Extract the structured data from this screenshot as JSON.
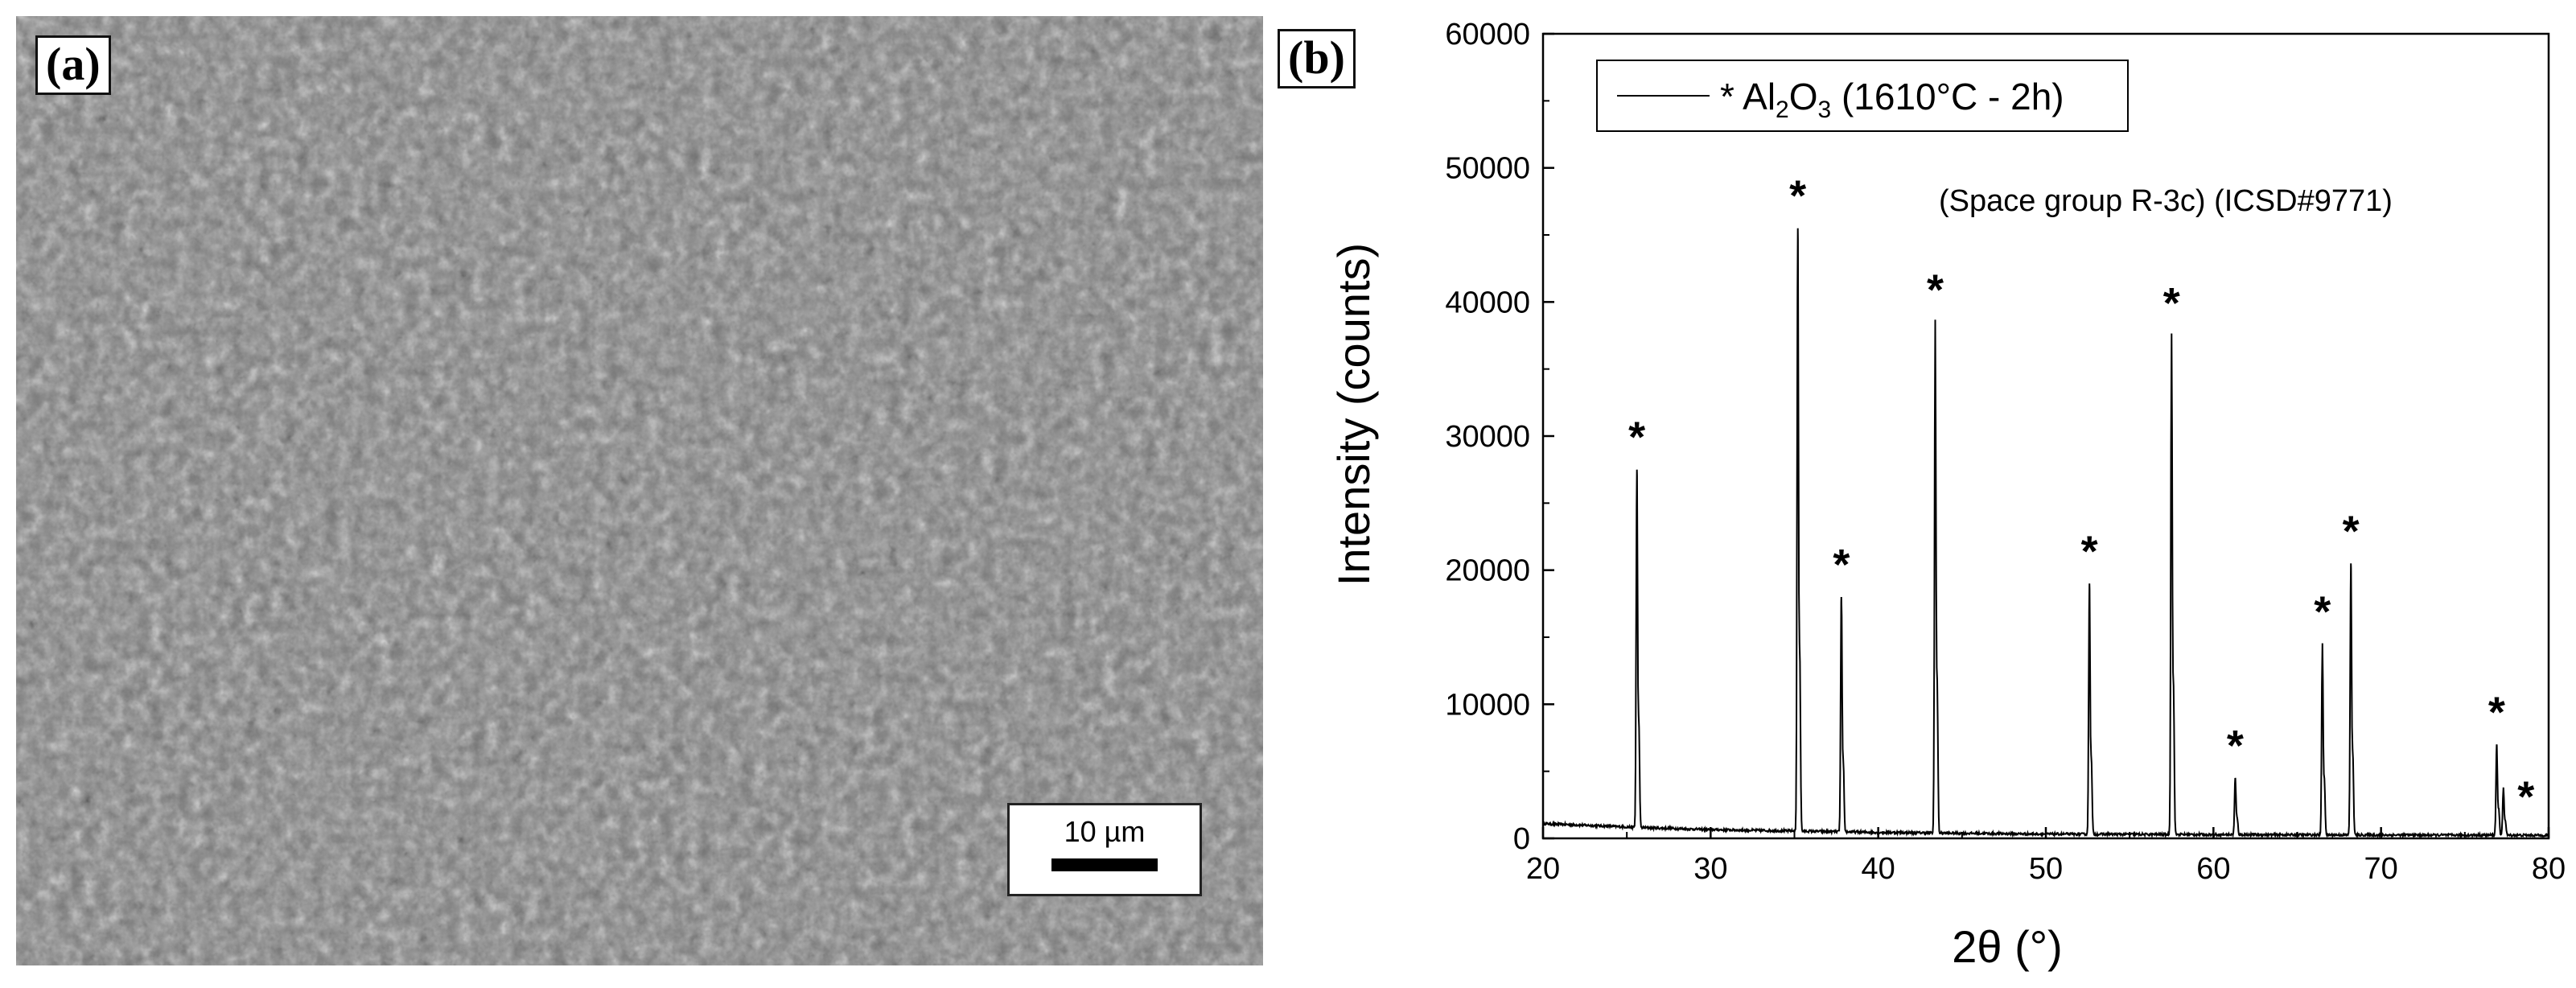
{
  "panel_a": {
    "label": "(a)",
    "scale_bar_label": "10 µm"
  },
  "panel_b": {
    "label": "(b)"
  },
  "chart_data": {
    "type": "line",
    "title": "",
    "xlabel": "2θ (°)",
    "ylabel": "Intensity (counts)",
    "xlim": [
      20,
      80
    ],
    "ylim": [
      0,
      60000
    ],
    "x_ticks": [
      20,
      30,
      40,
      50,
      60,
      70,
      80
    ],
    "y_ticks": [
      0,
      10000,
      20000,
      30000,
      40000,
      50000,
      60000
    ],
    "legend": {
      "position": "top-left",
      "entry_prefix": "* Al",
      "entry_sub1": "2",
      "entry_mid": "O",
      "entry_sub2": "3",
      "entry_suffix": " (1610°C - 2h)"
    },
    "annotation": "(Space group R-3c) (ICSD#9771)",
    "peak_marker": "*",
    "baseline": [
      [
        20,
        1100
      ],
      [
        22,
        1000
      ],
      [
        24,
        900
      ],
      [
        26,
        800
      ],
      [
        30,
        650
      ],
      [
        35,
        550
      ],
      [
        40,
        450
      ],
      [
        45,
        380
      ],
      [
        50,
        320
      ],
      [
        55,
        300
      ],
      [
        60,
        280
      ],
      [
        65,
        260
      ],
      [
        70,
        250
      ],
      [
        75,
        240
      ],
      [
        80,
        230
      ]
    ],
    "series": [
      {
        "peaks": [
          {
            "x": 25.6,
            "y": 27500
          },
          {
            "x": 35.2,
            "y": 45500
          },
          {
            "x": 37.8,
            "y": 18000
          },
          {
            "x": 43.4,
            "y": 38500
          },
          {
            "x": 52.6,
            "y": 19000
          },
          {
            "x": 57.5,
            "y": 37500
          },
          {
            "x": 61.3,
            "y": 4500
          },
          {
            "x": 66.5,
            "y": 14500
          },
          {
            "x": 68.2,
            "y": 20500
          },
          {
            "x": 76.9,
            "y": 7000
          },
          {
            "x": 77.3,
            "y": 3800
          }
        ]
      }
    ],
    "colors": {
      "line": "#000000",
      "axis": "#000000"
    }
  }
}
